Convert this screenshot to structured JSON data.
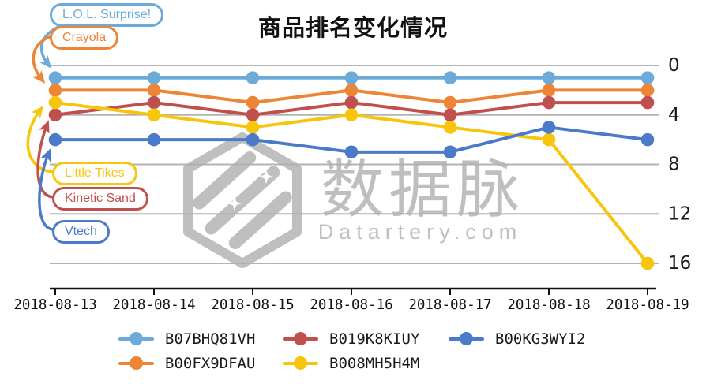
{
  "page": {
    "title": "商品排名变化情况"
  },
  "watermark": {
    "cn": "数据脉",
    "en": "Datartery.com"
  },
  "chart_data": {
    "type": "line",
    "title": "商品排名变化情况",
    "x": [
      "2018-08-13",
      "2018-08-14",
      "2018-08-15",
      "2018-08-16",
      "2018-08-17",
      "2018-08-18",
      "2018-08-19"
    ],
    "series": [
      {
        "name": "B07BHQ81VH",
        "product": "L.O.L. Surprise!",
        "color": "#6BAAD9",
        "values": [
          1,
          1,
          1,
          1,
          1,
          1,
          1
        ]
      },
      {
        "name": "B00FX9DFAU",
        "product": "Crayola",
        "color": "#EE8536",
        "values": [
          2,
          2,
          3,
          2,
          3,
          2,
          2
        ]
      },
      {
        "name": "B019K8KIUY",
        "product": "Kinetic Sand",
        "color": "#C0504D",
        "values": [
          4,
          3,
          4,
          3,
          4,
          3,
          3
        ]
      },
      {
        "name": "B008MH5H4M",
        "product": "Little Tikes",
        "color": "#F7C50C",
        "values": [
          3,
          4,
          5,
          4,
          5,
          6,
          16
        ]
      },
      {
        "name": "B00KG3WYI2",
        "product": "Vtech",
        "color": "#4B7BC8",
        "values": [
          6,
          6,
          6,
          7,
          7,
          5,
          6
        ]
      }
    ],
    "y_ticks": [
      0,
      4,
      8,
      12,
      16
    ],
    "y_axis": {
      "direction": "down",
      "label_side": "right",
      "min": 0,
      "max": 16
    },
    "grid": true,
    "legend_position": "bottom"
  },
  "callouts": [
    {
      "label": "L.O.L. Surprise!",
      "series": "B07BHQ81VH"
    },
    {
      "label": "Crayola",
      "series": "B00FX9DFAU"
    },
    {
      "label": "Little Tikes",
      "series": "B008MH5H4M"
    },
    {
      "label": "Kinetic Sand",
      "series": "B019K8KIUY"
    },
    {
      "label": "Vtech",
      "series": "B00KG3WYI2"
    }
  ],
  "legend": {
    "items": [
      "B07BHQ81VH",
      "B019K8KIUY",
      "B00KG3WYI2",
      "B00FX9DFAU",
      "B008MH5H4M"
    ],
    "per_row": 3
  }
}
